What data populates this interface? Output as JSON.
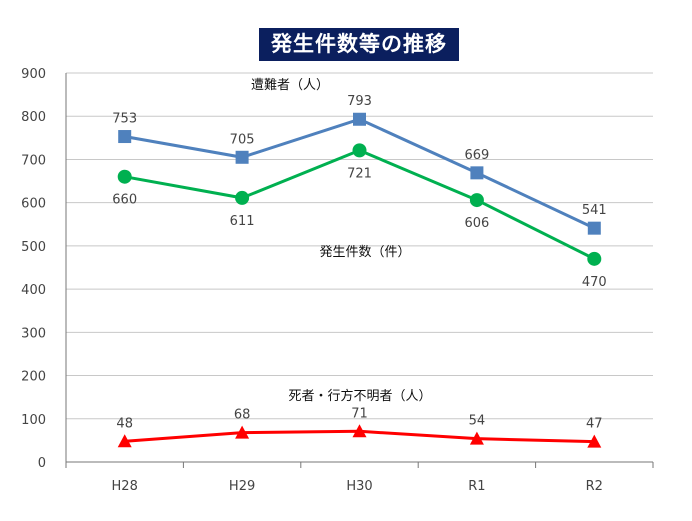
{
  "chart_data": {
    "type": "line",
    "title": "発生件数等の推移",
    "categories": [
      "H28",
      "H29",
      "H30",
      "R1",
      "R2"
    ],
    "ylim": [
      0,
      900
    ],
    "yticks": [
      0,
      100,
      200,
      300,
      400,
      500,
      600,
      700,
      800,
      900
    ],
    "grid": true,
    "series": [
      {
        "name": "遭難者（人）",
        "values": [
          753,
          705,
          793,
          669,
          541
        ],
        "color": "#4f81bd",
        "marker": "square",
        "label_position": "above"
      },
      {
        "name": "発生件数（件）",
        "values": [
          660,
          611,
          721,
          606,
          470
        ],
        "color": "#00b050",
        "marker": "circle",
        "label_position": "below"
      },
      {
        "name": "死者・行方不明者（人）",
        "values": [
          48,
          68,
          71,
          54,
          47
        ],
        "color": "#ff0000",
        "marker": "triangle",
        "label_position": "above"
      }
    ]
  }
}
